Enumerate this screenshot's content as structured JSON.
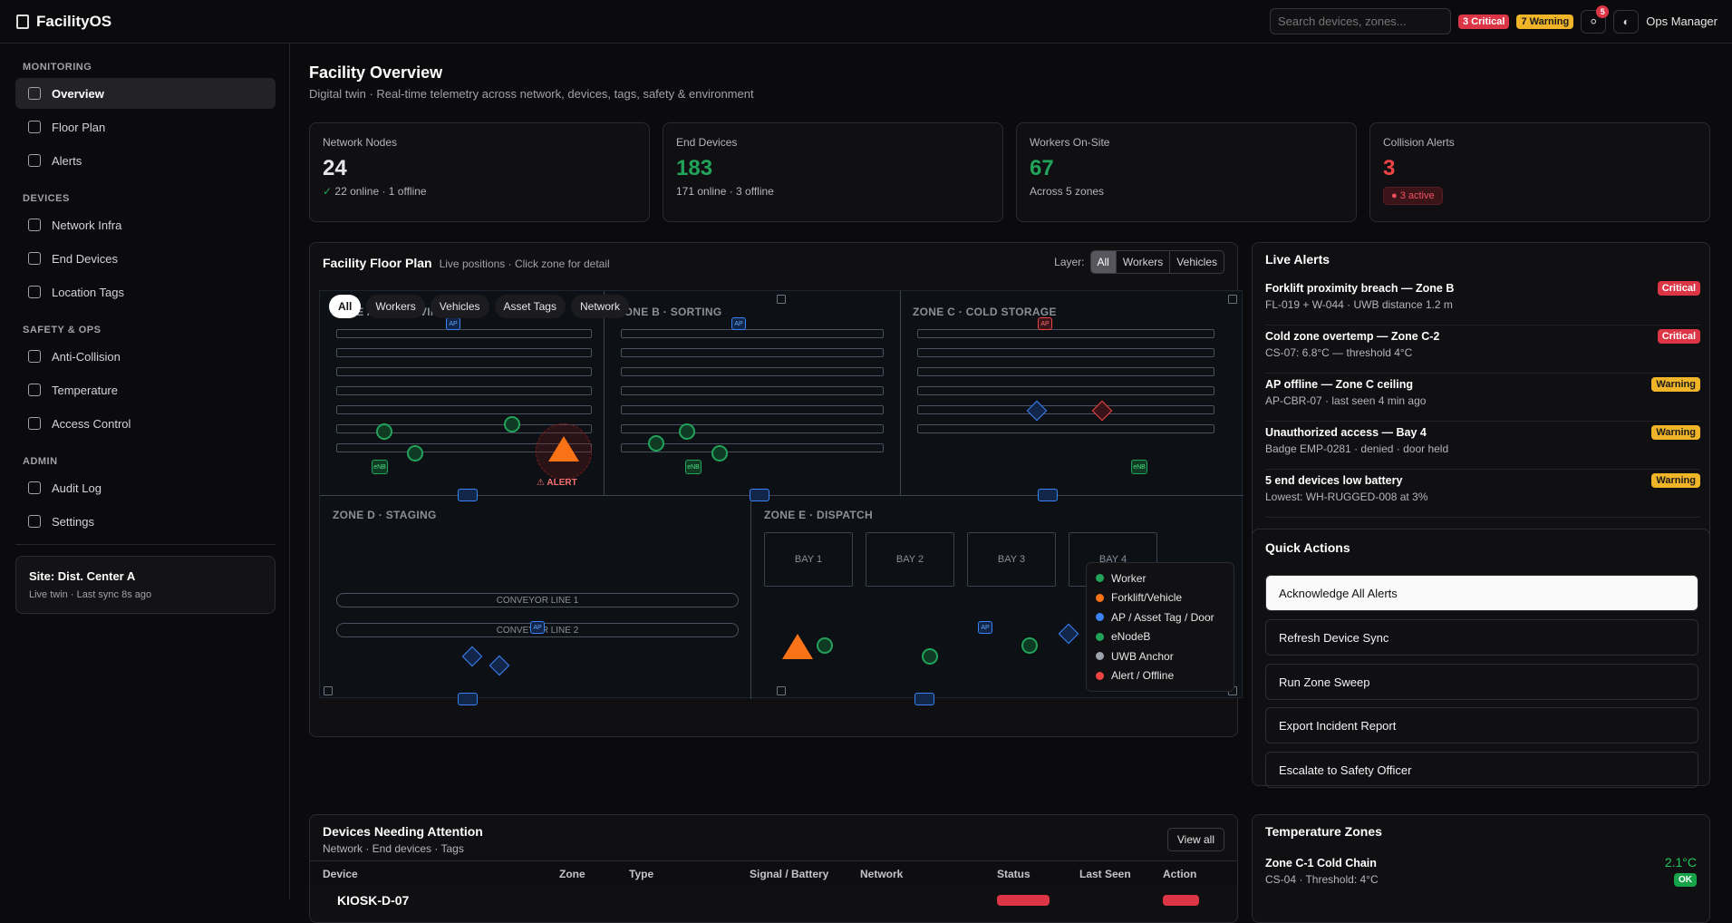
{
  "app": {
    "title": "FacilityOS",
    "user": "Ops Manager",
    "notif_count": "5"
  },
  "search": {
    "placeholder": "Search devices, zones..."
  },
  "badges": {
    "critical": "3 Critical",
    "warning": "7 Warning"
  },
  "sidebar": {
    "sections": [
      {
        "title": "MONITORING",
        "items": [
          "Overview",
          "Floor Plan",
          "Alerts"
        ]
      },
      {
        "title": "DEVICES",
        "items": [
          "Network Infra",
          "End Devices",
          "Location Tags"
        ]
      },
      {
        "title": "SAFETY & OPS",
        "items": [
          "Anti-Collision",
          "Temperature",
          "Access Control"
        ]
      },
      {
        "title": "ADMIN",
        "items": [
          "Audit Log",
          "Settings"
        ]
      }
    ],
    "site": {
      "title": "Site: Dist. Center A",
      "sub": "Live twin · Last sync 8s ago"
    }
  },
  "page": {
    "title": "Facility Overview",
    "subtitle": "Digital twin · Real-time telemetry across network, devices, tags, safety & environment"
  },
  "stats": [
    {
      "label": "Network Nodes",
      "value": "24",
      "sub": "22 online · 1 offline",
      "color": "#ffffff"
    },
    {
      "label": "End Devices",
      "value": "183",
      "sub": "171 online · 3 offline",
      "color": "#22a35a"
    },
    {
      "label": "Workers On-Site",
      "value": "67",
      "sub": "Across 5 zones",
      "color": "#22a35a"
    },
    {
      "label": "Collision Alerts",
      "value": "3",
      "sub": "3 active",
      "color": "#ef4444"
    }
  ],
  "floorplan": {
    "title": "Facility Floor Plan",
    "subtitle": "Live positions · Click zone for detail",
    "layer_label": "Layer:",
    "layers": [
      "All",
      "Workers",
      "Vehicles"
    ],
    "chips": [
      "All",
      "Workers",
      "Vehicles",
      "Asset Tags",
      "Network"
    ],
    "zones": {
      "a": "ZONE A · RECEIVING",
      "b": "ZONE B · SORTING",
      "c": "ZONE C · COLD STORAGE",
      "d": "ZONE D · STAGING",
      "e": "ZONE E · DISPATCH"
    },
    "conveyors": [
      "CONVEYOR LINE 1",
      "CONVEYOR LINE 2"
    ],
    "bays": [
      "BAY 1",
      "BAY 2",
      "BAY 3",
      "BAY 4"
    ],
    "alert_label": "⚠ ALERT",
    "ap_label": "AP",
    "enb_label": "eNB",
    "legend": [
      {
        "label": "Worker",
        "color": "#22a35a"
      },
      {
        "label": "Forklift/Vehicle",
        "color": "#f97316"
      },
      {
        "label": "AP / Asset Tag / Door",
        "color": "#3b82f6"
      },
      {
        "label": "eNodeB",
        "color": "#22a35a"
      },
      {
        "label": "UWB Anchor",
        "color": "#9ca3af"
      },
      {
        "label": "Alert / Offline",
        "color": "#ef4444"
      }
    ]
  },
  "live_alerts": {
    "title": "Live Alerts",
    "items": [
      {
        "title": "Forklift proximity breach — Zone B",
        "sub": "FL-019 + W-044 · UWB distance 1.2 m",
        "level": "Critical"
      },
      {
        "title": "Cold zone overtemp — Zone C-2",
        "sub": "CS-07: 6.8°C — threshold 4°C",
        "level": "Critical"
      },
      {
        "title": "AP offline — Zone C ceiling",
        "sub": "AP-CBR-07 · last seen 4 min ago",
        "level": "Warning"
      },
      {
        "title": "Unauthorized access — Bay 4",
        "sub": "Badge EMP-0281 · denied · door held",
        "level": "Warning"
      },
      {
        "title": "5 end devices low battery",
        "sub": "Lowest: WH-RUGGED-008 at 3%",
        "level": "Warning"
      }
    ]
  },
  "quick_actions": {
    "title": "Quick Actions",
    "items": [
      "Acknowledge All Alerts",
      "Refresh Device Sync",
      "Run Zone Sweep",
      "Export Incident Report",
      "Escalate to Safety Officer"
    ]
  },
  "devices": {
    "title": "Devices Needing Attention",
    "subtitle": "Network · End devices · Tags",
    "view_all": "View all",
    "columns": [
      "Device",
      "Zone",
      "Type",
      "Signal / Battery",
      "Network",
      "Status",
      "Last Seen",
      "Action"
    ],
    "rows": [
      {
        "device": "KIOSK-D-07"
      }
    ]
  },
  "temperature": {
    "title": "Temperature Zones",
    "rows": [
      {
        "name": "Zone C-1 Cold Chain",
        "sub": "CS-04 · Threshold: 4°C",
        "value": "2.1°C",
        "status": "OK"
      }
    ]
  }
}
